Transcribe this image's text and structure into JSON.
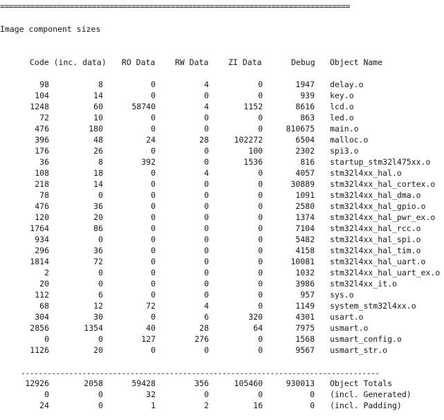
{
  "separator_top": "================================================================================",
  "section_title": "Image component sizes",
  "headers": [
    "Code (inc. data)",
    "RO Data",
    "RW Data",
    "ZI Data",
    "Debug",
    "Object Name"
  ],
  "rows": [
    [
      "98",
      "8",
      "0",
      "4",
      "0",
      "1947",
      "delay.o"
    ],
    [
      "104",
      "14",
      "0",
      "0",
      "0",
      "939",
      "key.o"
    ],
    [
      "1248",
      "60",
      "58740",
      "4",
      "1152",
      "8616",
      "lcd.o"
    ],
    [
      "72",
      "10",
      "0",
      "0",
      "0",
      "863",
      "led.o"
    ],
    [
      "476",
      "180",
      "0",
      "0",
      "0",
      "810675",
      "main.o"
    ],
    [
      "396",
      "48",
      "24",
      "28",
      "102272",
      "6504",
      "malloc.o"
    ],
    [
      "176",
      "26",
      "0",
      "0",
      "100",
      "2302",
      "spi3.o"
    ],
    [
      "36",
      "8",
      "392",
      "0",
      "1536",
      "816",
      "startup_stm32l475xx.o"
    ],
    [
      "108",
      "18",
      "0",
      "4",
      "0",
      "4057",
      "stm32l4xx_hal.o"
    ],
    [
      "218",
      "14",
      "0",
      "0",
      "0",
      "30889",
      "stm32l4xx_hal_cortex.o"
    ],
    [
      "78",
      "0",
      "0",
      "0",
      "0",
      "1091",
      "stm32l4xx_hal_dma.o"
    ],
    [
      "476",
      "36",
      "0",
      "0",
      "0",
      "2580",
      "stm32l4xx_hal_gpio.o"
    ],
    [
      "120",
      "20",
      "0",
      "0",
      "0",
      "1374",
      "stm32l4xx_hal_pwr_ex.o"
    ],
    [
      "1764",
      "86",
      "0",
      "0",
      "0",
      "7104",
      "stm32l4xx_hal_rcc.o"
    ],
    [
      "934",
      "0",
      "0",
      "0",
      "0",
      "5482",
      "stm32l4xx_hal_spi.o"
    ],
    [
      "296",
      "36",
      "0",
      "0",
      "0",
      "4158",
      "stm32l4xx_hal_tim.o"
    ],
    [
      "1814",
      "72",
      "0",
      "0",
      "0",
      "10081",
      "stm32l4xx_hal_uart.o"
    ],
    [
      "2",
      "0",
      "0",
      "0",
      "0",
      "1032",
      "stm32l4xx_hal_uart_ex.o"
    ],
    [
      "20",
      "0",
      "0",
      "0",
      "0",
      "3986",
      "stm32l4xx_it.o"
    ],
    [
      "112",
      "6",
      "0",
      "0",
      "0",
      "957",
      "sys.o"
    ],
    [
      "68",
      "12",
      "72",
      "4",
      "0",
      "1149",
      "system_stm32l4xx.o"
    ],
    [
      "304",
      "30",
      "0",
      "6",
      "320",
      "4301",
      "usart.o"
    ],
    [
      "2856",
      "1354",
      "40",
      "28",
      "64",
      "7975",
      "usmart.o"
    ],
    [
      "0",
      "0",
      "127",
      "276",
      "0",
      "1568",
      "usmart_config.o"
    ],
    [
      "1126",
      "20",
      "0",
      "0",
      "0",
      "9567",
      "usmart_str.o"
    ]
  ],
  "separator_mid": "----------------------------------------------------------------------------------",
  "totals": [
    [
      "12926",
      "2058",
      "59428",
      "356",
      "105460",
      "930013",
      "Object Totals"
    ],
    [
      "0",
      "0",
      "32",
      "0",
      "0",
      "0",
      "(incl. Generated)"
    ],
    [
      "24",
      "0",
      "1",
      "2",
      "16",
      "0",
      "(incl. Padding)"
    ]
  ]
}
